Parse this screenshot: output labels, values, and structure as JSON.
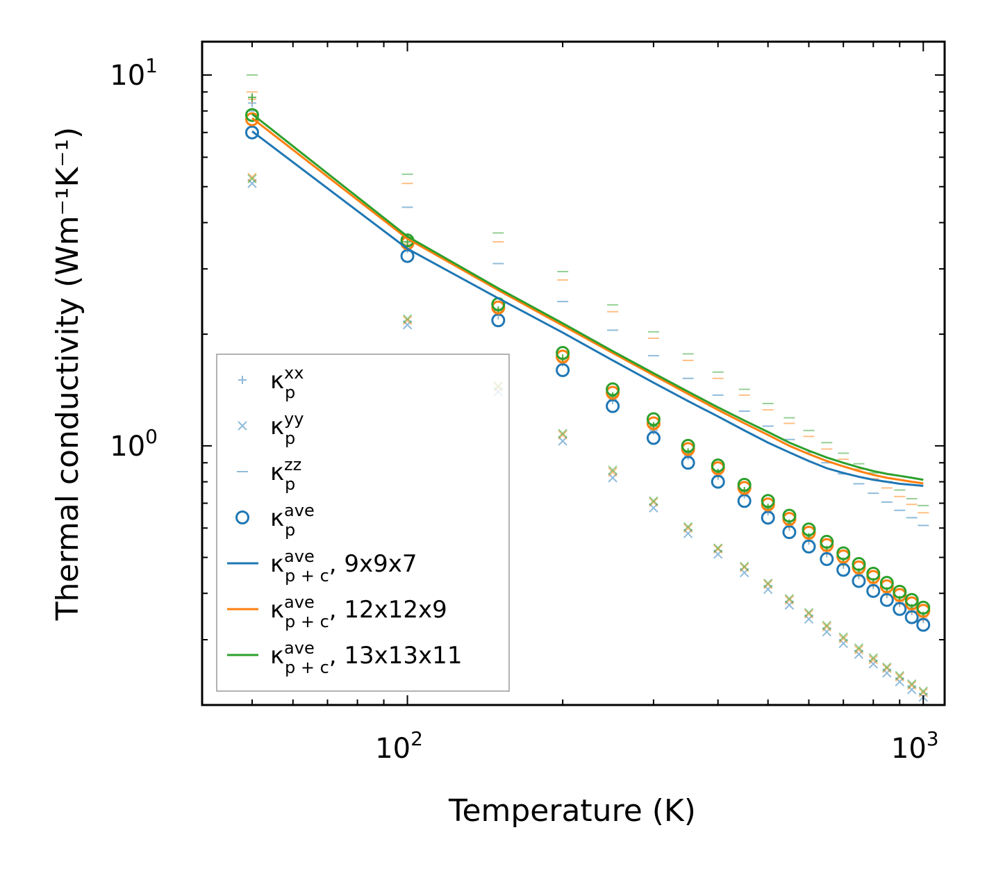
{
  "chart_data": {
    "type": "scatter",
    "xscale": "log",
    "yscale": "log",
    "xlim": [
      40,
      1100
    ],
    "ylim": [
      0.2,
      12.3
    ],
    "xlabel": "Temperature (K)",
    "ylabel": "Thermal conductivity (Wm⁻¹K⁻¹)",
    "xticks": [
      {
        "value": 100,
        "base": "10",
        "exp": "2"
      },
      {
        "value": 1000,
        "base": "10",
        "exp": "3"
      }
    ],
    "yticks": [
      {
        "value": 1,
        "base": "10",
        "exp": "0"
      },
      {
        "value": 10,
        "base": "10",
        "exp": "1"
      }
    ],
    "x": [
      50,
      100,
      150,
      200,
      250,
      300,
      350,
      400,
      450,
      500,
      550,
      600,
      650,
      700,
      750,
      800,
      850,
      900,
      950,
      1000
    ],
    "colors": {
      "blue": "#1f77b4",
      "orange": "#ff7f0e",
      "green": "#2ca02c"
    },
    "scatter_series": [
      {
        "name": "κp_xx 9x9x7",
        "marker": "plus",
        "color": "#1f77b4",
        "alpha": 0.5,
        "values": [
          8.4,
          3.4,
          2.25,
          1.68,
          1.33,
          1.1,
          0.94,
          0.83,
          0.74,
          0.665,
          0.605,
          0.555,
          0.513,
          0.478,
          0.448,
          0.421,
          0.398,
          0.377,
          0.358,
          0.341
        ]
      },
      {
        "name": "κp_xx 12x12x9",
        "marker": "plus",
        "color": "#ff7f0e",
        "alpha": 0.5,
        "values": [
          8.6,
          3.5,
          2.3,
          1.7,
          1.35,
          1.12,
          0.955,
          0.84,
          0.75,
          0.675,
          0.612,
          0.562,
          0.52,
          0.484,
          0.453,
          0.426,
          0.402,
          0.381,
          0.362,
          0.345
        ]
      },
      {
        "name": "κp_xx 13x13x11",
        "marker": "plus",
        "color": "#2ca02c",
        "alpha": 0.8,
        "values": [
          8.7,
          3.55,
          2.32,
          1.72,
          1.36,
          1.13,
          0.96,
          0.845,
          0.755,
          0.68,
          0.617,
          0.567,
          0.524,
          0.487,
          0.456,
          0.429,
          0.405,
          0.384,
          0.365,
          0.348
        ]
      },
      {
        "name": "κp_yy 9x9x7",
        "marker": "x",
        "color": "#1f77b4",
        "alpha": 0.5,
        "values": [
          5.1,
          2.12,
          1.4,
          1.03,
          0.82,
          0.68,
          0.58,
          0.51,
          0.455,
          0.41,
          0.372,
          0.341,
          0.315,
          0.293,
          0.274,
          0.258,
          0.244,
          0.231,
          0.22,
          0.21
        ]
      },
      {
        "name": "κp_yy 12x12x9",
        "marker": "x",
        "color": "#ff7f0e",
        "alpha": 0.5,
        "values": [
          5.3,
          2.18,
          1.44,
          1.07,
          0.85,
          0.705,
          0.6,
          0.527,
          0.47,
          0.423,
          0.384,
          0.352,
          0.325,
          0.302,
          0.282,
          0.265,
          0.251,
          0.238,
          0.226,
          0.216
        ]
      },
      {
        "name": "κp_yy 13x13x11",
        "marker": "x",
        "color": "#2ca02c",
        "alpha": 0.5,
        "values": [
          5.25,
          2.2,
          1.45,
          1.08,
          0.86,
          0.71,
          0.605,
          0.53,
          0.473,
          0.426,
          0.387,
          0.355,
          0.328,
          0.305,
          0.285,
          0.268,
          0.253,
          0.24,
          0.228,
          0.218
        ]
      },
      {
        "name": "κp_zz 9x9x7",
        "marker": "hline",
        "color": "#1f77b4",
        "alpha": 0.5,
        "values": [
          8.0,
          4.4,
          3.1,
          2.45,
          2.05,
          1.75,
          1.52,
          1.37,
          1.24,
          1.13,
          1.04,
          0.96,
          0.9,
          0.84,
          0.79,
          0.745,
          0.705,
          0.67,
          0.64,
          0.61
        ]
      },
      {
        "name": "κp_zz 12x12x9",
        "marker": "hline",
        "color": "#ff7f0e",
        "alpha": 0.5,
        "values": [
          9.0,
          5.1,
          3.55,
          2.8,
          2.3,
          1.95,
          1.7,
          1.52,
          1.37,
          1.25,
          1.15,
          1.06,
          0.98,
          0.92,
          0.865,
          0.815,
          0.77,
          0.73,
          0.695,
          0.66
        ]
      },
      {
        "name": "κp_zz 13x13x11",
        "marker": "hline",
        "color": "#2ca02c",
        "alpha": 0.5,
        "values": [
          10.0,
          5.4,
          3.75,
          2.95,
          2.4,
          2.03,
          1.77,
          1.58,
          1.42,
          1.3,
          1.19,
          1.1,
          1.02,
          0.955,
          0.895,
          0.845,
          0.8,
          0.76,
          0.72,
          0.69
        ]
      },
      {
        "name": "κp_ave 9x9x7",
        "marker": "circle",
        "color": "#1f77b4",
        "alpha": 1,
        "values": [
          7.0,
          3.25,
          2.18,
          1.6,
          1.28,
          1.05,
          0.9,
          0.8,
          0.71,
          0.64,
          0.585,
          0.535,
          0.495,
          0.463,
          0.432,
          0.406,
          0.384,
          0.363,
          0.345,
          0.329
        ]
      },
      {
        "name": "κp_ave 12x12x9",
        "marker": "circle",
        "color": "#ff7f0e",
        "alpha": 1,
        "values": [
          7.6,
          3.52,
          2.36,
          1.74,
          1.39,
          1.15,
          0.98,
          0.87,
          0.77,
          0.695,
          0.635,
          0.583,
          0.54,
          0.503,
          0.47,
          0.443,
          0.418,
          0.396,
          0.376,
          0.359
        ]
      },
      {
        "name": "κp_ave 13x13x11",
        "marker": "circle",
        "color": "#2ca02c",
        "alpha": 1,
        "values": [
          7.8,
          3.58,
          2.41,
          1.78,
          1.42,
          1.18,
          1.0,
          0.885,
          0.785,
          0.71,
          0.648,
          0.595,
          0.551,
          0.513,
          0.48,
          0.452,
          0.427,
          0.404,
          0.384,
          0.366
        ]
      }
    ],
    "line_series": [
      {
        "name": "κp+c_ave 9x9x7",
        "color": "#1f77b4",
        "values": [
          7.05,
          3.4,
          2.5,
          2.02,
          1.7,
          1.48,
          1.32,
          1.2,
          1.1,
          1.02,
          0.96,
          0.91,
          0.87,
          0.845,
          0.825,
          0.81,
          0.8,
          0.79,
          0.785,
          0.78
        ]
      },
      {
        "name": "κp+c_ave 12x12x9",
        "color": "#ff7f0e",
        "values": [
          7.65,
          3.62,
          2.63,
          2.11,
          1.78,
          1.55,
          1.38,
          1.25,
          1.15,
          1.07,
          1.0,
          0.95,
          0.91,
          0.88,
          0.855,
          0.835,
          0.82,
          0.81,
          0.8,
          0.792
        ]
      },
      {
        "name": "κp+c_ave 13x13x11",
        "color": "#2ca02c",
        "values": [
          7.85,
          3.67,
          2.66,
          2.14,
          1.8,
          1.57,
          1.4,
          1.27,
          1.17,
          1.09,
          1.02,
          0.97,
          0.93,
          0.9,
          0.875,
          0.855,
          0.84,
          0.83,
          0.82,
          0.81
        ]
      }
    ],
    "legend": {
      "placement": "lower-left",
      "entries": [
        {
          "marker": "plus",
          "color": "#1f77b4",
          "sym": "κ",
          "sup": "xx",
          "sub": "p",
          "suffix": ""
        },
        {
          "marker": "x",
          "color": "#1f77b4",
          "sym": "κ",
          "sup": "yy",
          "sub": "p",
          "suffix": ""
        },
        {
          "marker": "hline",
          "color": "#1f77b4",
          "sym": "κ",
          "sup": "zz",
          "sub": "p",
          "suffix": ""
        },
        {
          "marker": "circle",
          "color": "#1f77b4",
          "sym": "κ",
          "sup": "ave",
          "sub": "p",
          "suffix": ""
        },
        {
          "marker": "line",
          "color": "#1f77b4",
          "sym": "κ",
          "sup": "ave",
          "sub": "p + c",
          "suffix": ", 9x9x7"
        },
        {
          "marker": "line",
          "color": "#ff7f0e",
          "sym": "κ",
          "sup": "ave",
          "sub": "p + c",
          "suffix": ", 12x12x9"
        },
        {
          "marker": "line",
          "color": "#2ca02c",
          "sym": "κ",
          "sup": "ave",
          "sub": "p + c",
          "suffix": ", 13x13x11"
        }
      ]
    }
  }
}
